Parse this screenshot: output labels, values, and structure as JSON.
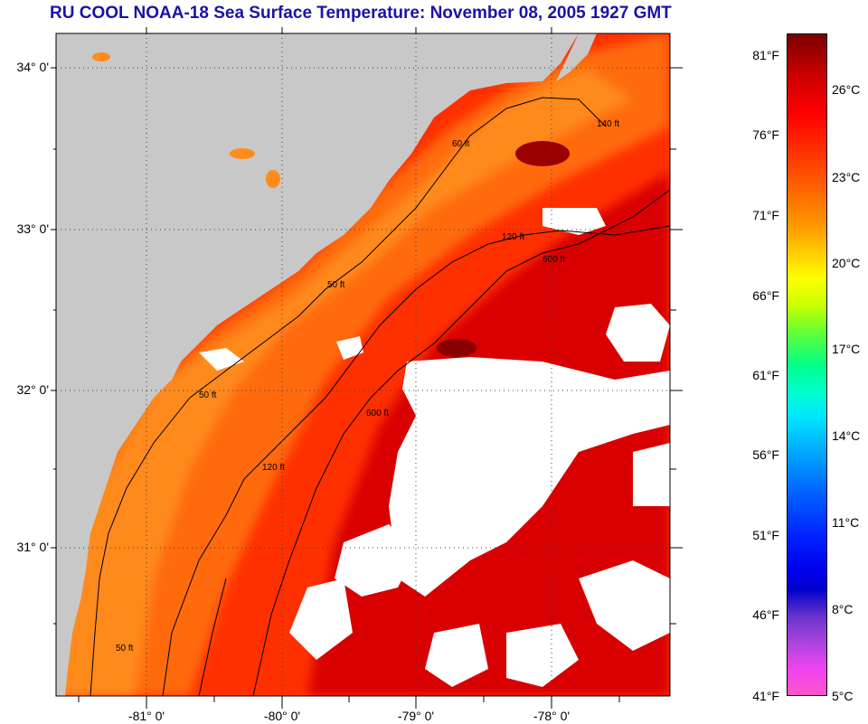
{
  "title": "RU COOL  NOAA-18  Sea Surface Temperature:  November 08, 2005 1927 GMT",
  "map": {
    "latitude_labels": [
      "34° 0'",
      "33° 0'",
      "32° 0'",
      "31° 0'"
    ],
    "longitude_labels": [
      "-81° 0'",
      "-80° 0'",
      "-79° 0'",
      "-78° 0'"
    ],
    "isobath_labels": [
      "50 ft",
      "60 ft",
      "120 ft",
      "600 ft",
      "140 ft"
    ],
    "colors": {
      "land": "#c8c8c8",
      "cloud": "#ffffff",
      "nearshore": "#ff8c1a",
      "midshelf": "#ff3a00",
      "gulfstream": "#d40000",
      "warmcore": "#8a0000",
      "contour": "#000000",
      "grid": "#404040"
    }
  },
  "colorbar": {
    "fahrenheit_labels": [
      "81°F",
      "76°F",
      "71°F",
      "66°F",
      "61°F",
      "56°F",
      "51°F",
      "46°F",
      "41°F"
    ],
    "celsius_labels": [
      "26°C",
      "23°C",
      "20°C",
      "17°C",
      "14°C",
      "11°C",
      "8°C",
      "5°C"
    ]
  }
}
